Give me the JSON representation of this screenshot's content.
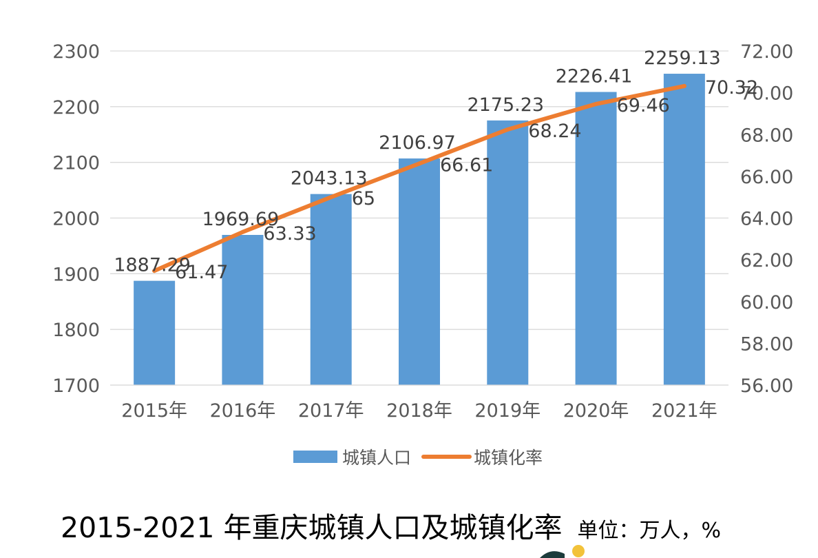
{
  "chart_data": {
    "type": "bar",
    "categories": [
      "2015年",
      "2016年",
      "2017年",
      "2018年",
      "2019年",
      "2020年",
      "2021年"
    ],
    "series": [
      {
        "name": "城镇人口",
        "type": "bar",
        "axis": "left",
        "color": "#5b9bd5",
        "values": [
          1887.29,
          1969.69,
          2043.13,
          2106.97,
          2175.23,
          2226.41,
          2259.13
        ],
        "labels": [
          "1887.29",
          "1969.69",
          "2043.13",
          "2106.97",
          "2175.23",
          "2226.41",
          "2259.13"
        ]
      },
      {
        "name": "城镇化率",
        "type": "line",
        "axis": "right",
        "color": "#ed7d31",
        "values": [
          61.47,
          63.33,
          65,
          66.61,
          68.24,
          69.46,
          70.32
        ],
        "labels": [
          "61.47",
          "63.33",
          "65",
          "66.61",
          "68.24",
          "69.46",
          "70.32"
        ]
      }
    ],
    "y_left": {
      "ylim": [
        1700,
        2300
      ],
      "ticks": [
        "1700",
        "1800",
        "1900",
        "2000",
        "2100",
        "2200",
        "2300"
      ]
    },
    "y_right": {
      "ylim": [
        56,
        72
      ],
      "ticks": [
        "56.00",
        "58.00",
        "60.00",
        "62.00",
        "64.00",
        "66.00",
        "68.00",
        "70.00",
        "72.00"
      ]
    },
    "grid": true,
    "legend_position": "bottom"
  },
  "caption": {
    "title": "2015-2021 年重庆城镇人口及城镇化率",
    "unit": "单位：万人，%"
  }
}
